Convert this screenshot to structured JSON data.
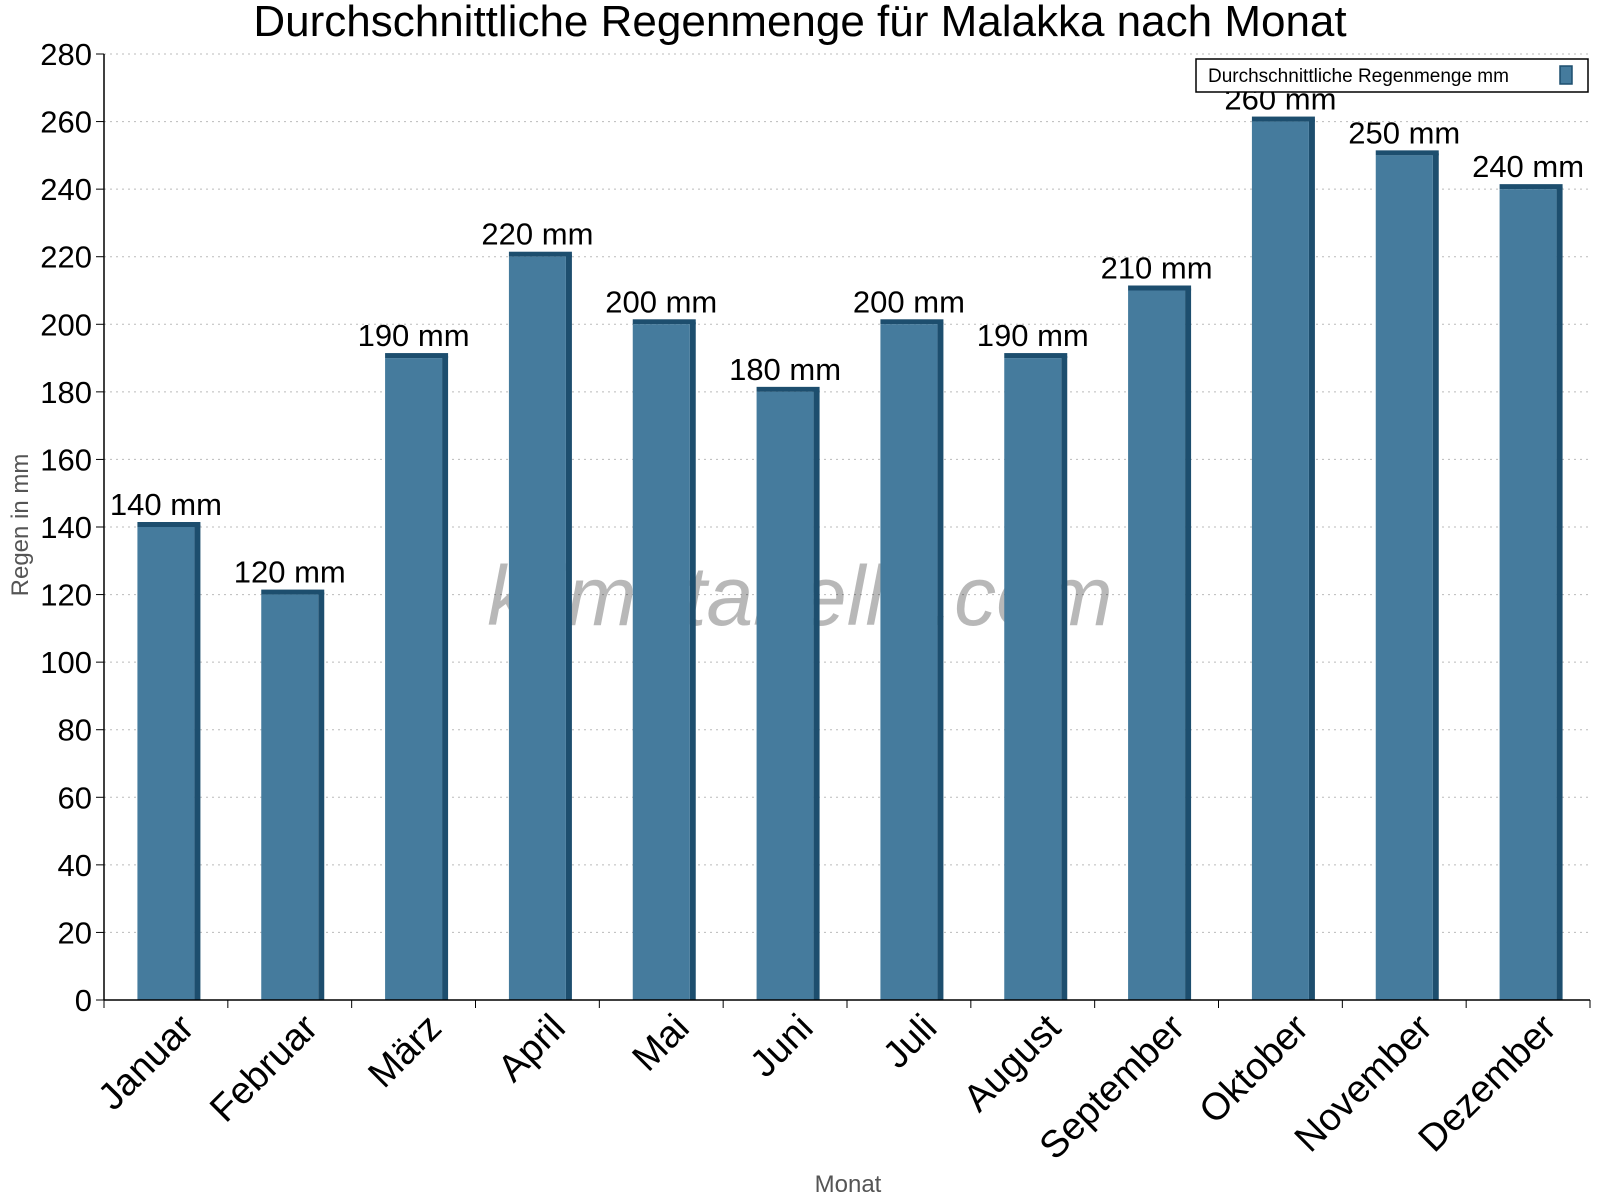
{
  "chart_data": {
    "type": "bar",
    "title": "Durchschnittliche Regenmenge für Malakka nach Monat",
    "xlabel": "Monat",
    "ylabel": "Regen in mm",
    "categories": [
      "Januar",
      "Februar",
      "März",
      "April",
      "Mai",
      "Juni",
      "Juli",
      "August",
      "September",
      "Oktober",
      "November",
      "Dezember"
    ],
    "series": [
      {
        "name": "Durchschnittliche Regenmenge mm",
        "values": [
          140,
          120,
          190,
          220,
          200,
          180,
          200,
          190,
          210,
          260,
          250,
          240
        ],
        "color": "#457b9d",
        "side_color": "#1d4e6e"
      }
    ],
    "data_labels": [
      "140 mm",
      "120 mm",
      "190 mm",
      "220 mm",
      "200 mm",
      "180 mm",
      "200 mm",
      "190 mm",
      "210 mm",
      "260 mm",
      "250 mm",
      "240 mm"
    ],
    "ylim": [
      0,
      280
    ],
    "yticks": [
      0,
      20,
      40,
      60,
      80,
      100,
      120,
      140,
      160,
      180,
      200,
      220,
      240,
      260,
      280
    ],
    "grid": true,
    "legend_position": "top-right",
    "watermark": "klimatabelle.com"
  }
}
